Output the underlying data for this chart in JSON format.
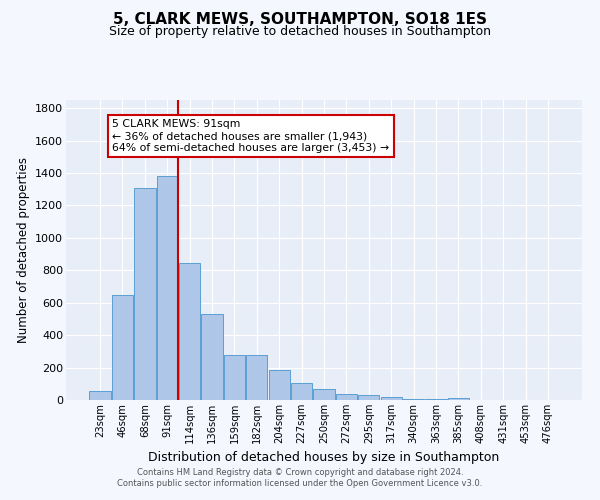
{
  "title": "5, CLARK MEWS, SOUTHAMPTON, SO18 1ES",
  "subtitle": "Size of property relative to detached houses in Southampton",
  "xlabel": "Distribution of detached houses by size in Southampton",
  "ylabel": "Number of detached properties",
  "footer_line1": "Contains HM Land Registry data © Crown copyright and database right 2024.",
  "footer_line2": "Contains public sector information licensed under the Open Government Licence v3.0.",
  "annotation_line1": "5 CLARK MEWS: 91sqm",
  "annotation_line2": "← 36% of detached houses are smaller (1,943)",
  "annotation_line3": "64% of semi-detached houses are larger (3,453) →",
  "categories": [
    "23sqm",
    "46sqm",
    "68sqm",
    "91sqm",
    "114sqm",
    "136sqm",
    "159sqm",
    "182sqm",
    "204sqm",
    "227sqm",
    "250sqm",
    "272sqm",
    "295sqm",
    "317sqm",
    "340sqm",
    "363sqm",
    "385sqm",
    "408sqm",
    "431sqm",
    "453sqm",
    "476sqm"
  ],
  "values": [
    55,
    648,
    1310,
    1380,
    845,
    530,
    275,
    275,
    185,
    105,
    65,
    35,
    30,
    17,
    5,
    5,
    13,
    0,
    0,
    0,
    0
  ],
  "bar_color": "#aec6e8",
  "bar_edge_color": "#5a9fd4",
  "highlight_color": "#cc0000",
  "annotation_box_color": "#ffffff",
  "annotation_box_edge": "#cc0000",
  "bg_color": "#e8eef8",
  "fig_bg_color": "#f5f7ff",
  "ylim": [
    0,
    1850
  ],
  "yticks": [
    0,
    200,
    400,
    600,
    800,
    1000,
    1200,
    1400,
    1600,
    1800
  ]
}
